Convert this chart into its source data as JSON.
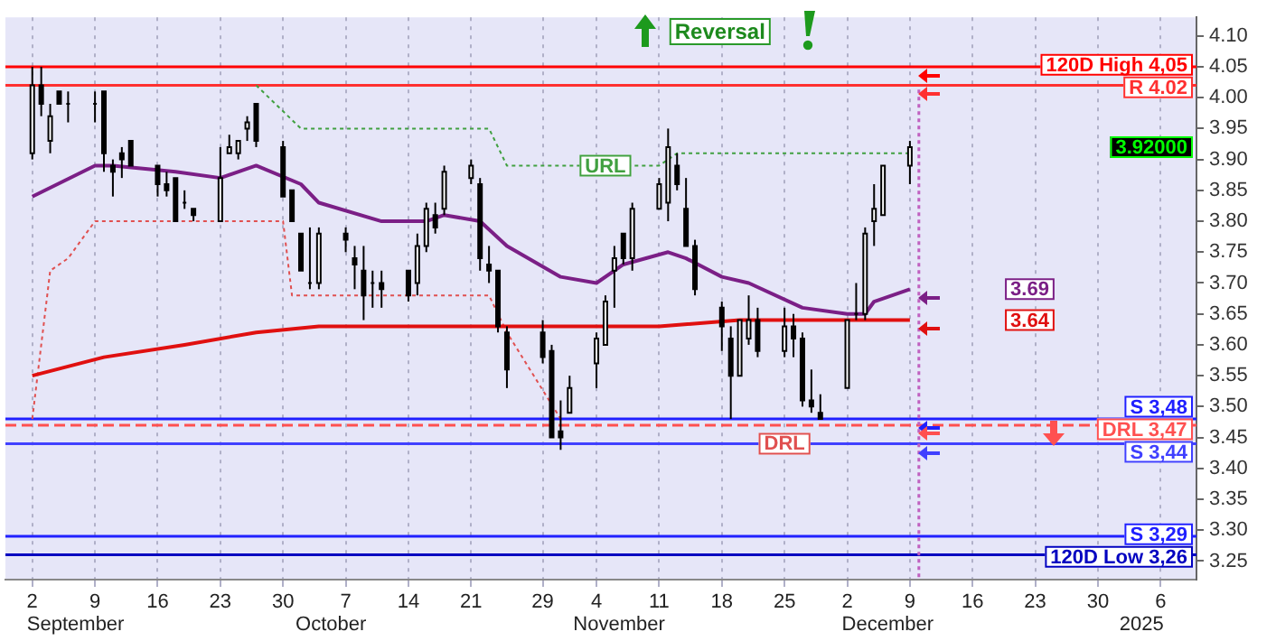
{
  "chart_data": {
    "type": "candlestick",
    "title": "Reversal",
    "x": [
      "2024-09-02",
      "2024-09-03",
      "2024-09-04",
      "2024-09-05",
      "2024-09-06",
      "2024-09-09",
      "2024-09-10",
      "2024-09-11",
      "2024-09-12",
      "2024-09-13",
      "2024-09-16",
      "2024-09-17",
      "2024-09-18",
      "2024-09-19",
      "2024-09-20",
      "2024-09-23",
      "2024-09-24",
      "2024-09-25",
      "2024-09-26",
      "2024-09-27",
      "2024-09-30",
      "2024-10-01",
      "2024-10-02",
      "2024-10-03",
      "2024-10-04",
      "2024-10-07",
      "2024-10-08",
      "2024-10-09",
      "2024-10-10",
      "2024-10-11",
      "2024-10-14",
      "2024-10-15",
      "2024-10-16",
      "2024-10-17",
      "2024-10-18",
      "2024-10-21",
      "2024-10-22",
      "2024-10-23",
      "2024-10-24",
      "2024-10-25",
      "2024-10-29",
      "2024-10-30",
      "2024-10-31",
      "2024-11-01",
      "2024-11-04",
      "2024-11-05",
      "2024-11-06",
      "2024-11-07",
      "2024-11-08",
      "2024-11-11",
      "2024-11-12",
      "2024-11-13",
      "2024-11-14",
      "2024-11-15",
      "2024-11-18",
      "2024-11-19",
      "2024-11-20",
      "2024-11-21",
      "2024-11-22",
      "2024-11-25",
      "2024-11-26",
      "2024-11-27",
      "2024-11-28",
      "2024-11-29",
      "2024-12-02",
      "2024-12-03",
      "2024-12-04",
      "2024-12-05",
      "2024-12-06",
      "2024-12-09"
    ],
    "ohlc": [
      [
        3.91,
        4.05,
        3.9,
        4.02
      ],
      [
        4.02,
        4.05,
        3.97,
        3.99
      ],
      [
        3.93,
        3.99,
        3.91,
        3.97
      ],
      [
        4.01,
        4.01,
        3.99,
        3.99
      ],
      [
        3.99,
        4.01,
        3.96,
        3.99
      ],
      [
        3.99,
        4.01,
        3.96,
        3.99
      ],
      [
        4.01,
        4.01,
        3.88,
        3.91
      ],
      [
        3.89,
        3.9,
        3.84,
        3.88
      ],
      [
        3.91,
        3.92,
        3.87,
        3.9
      ],
      [
        3.93,
        3.93,
        3.89,
        3.89
      ],
      [
        3.89,
        3.89,
        3.84,
        3.86
      ],
      [
        3.86,
        3.88,
        3.84,
        3.85
      ],
      [
        3.87,
        3.87,
        3.8,
        3.8
      ],
      [
        3.83,
        3.85,
        3.82,
        3.83
      ],
      [
        3.82,
        3.82,
        3.8,
        3.81
      ],
      [
        3.8,
        3.92,
        3.8,
        3.87
      ],
      [
        3.91,
        3.94,
        3.91,
        3.92
      ],
      [
        3.91,
        3.93,
        3.9,
        3.93
      ],
      [
        3.95,
        3.97,
        3.93,
        3.96
      ],
      [
        3.99,
        3.99,
        3.92,
        3.93
      ],
      [
        3.92,
        3.93,
        3.84,
        3.84
      ],
      [
        3.85,
        3.85,
        3.8,
        3.8
      ],
      [
        3.78,
        3.78,
        3.72,
        3.72
      ],
      [
        3.7,
        3.79,
        3.69,
        3.7
      ],
      [
        3.7,
        3.79,
        3.69,
        3.78
      ],
      [
        3.78,
        3.79,
        3.75,
        3.77
      ],
      [
        3.74,
        3.76,
        3.69,
        3.73
      ],
      [
        3.72,
        3.76,
        3.64,
        3.68
      ],
      [
        3.7,
        3.72,
        3.66,
        3.7
      ],
      [
        3.7,
        3.72,
        3.66,
        3.69
      ],
      [
        3.72,
        3.72,
        3.67,
        3.68
      ],
      [
        3.7,
        3.78,
        3.68,
        3.76
      ],
      [
        3.76,
        3.83,
        3.75,
        3.82
      ],
      [
        3.81,
        3.83,
        3.78,
        3.79
      ],
      [
        3.82,
        3.89,
        3.81,
        3.88
      ],
      [
        3.87,
        3.9,
        3.86,
        3.89
      ],
      [
        3.86,
        3.87,
        3.72,
        3.74
      ],
      [
        3.73,
        3.76,
        3.7,
        3.72
      ],
      [
        3.72,
        3.72,
        3.62,
        3.63
      ],
      [
        3.62,
        3.63,
        3.53,
        3.56
      ],
      [
        3.62,
        3.64,
        3.57,
        3.58
      ],
      [
        3.59,
        3.6,
        3.45,
        3.45
      ],
      [
        3.46,
        3.51,
        3.43,
        3.45
      ],
      [
        3.49,
        3.55,
        3.49,
        3.53
      ],
      [
        3.57,
        3.62,
        3.53,
        3.61
      ],
      [
        3.6,
        3.68,
        3.6,
        3.67
      ],
      [
        3.72,
        3.76,
        3.66,
        3.74
      ],
      [
        3.78,
        3.78,
        3.73,
        3.74
      ],
      [
        3.74,
        3.83,
        3.72,
        3.82
      ],
      [
        3.82,
        3.87,
        3.82,
        3.86
      ],
      [
        3.83,
        3.95,
        3.8,
        3.92
      ],
      [
        3.89,
        3.91,
        3.85,
        3.86
      ],
      [
        3.82,
        3.87,
        3.76,
        3.76
      ],
      [
        3.76,
        3.77,
        3.68,
        3.69
      ],
      [
        3.66,
        3.67,
        3.59,
        3.63
      ],
      [
        3.61,
        3.63,
        3.48,
        3.55
      ],
      [
        3.55,
        3.64,
        3.55,
        3.64
      ],
      [
        3.61,
        3.68,
        3.6,
        3.64
      ],
      [
        3.64,
        3.66,
        3.58,
        3.59
      ],
      [
        3.59,
        3.66,
        3.58,
        3.63
      ],
      [
        3.63,
        3.65,
        3.58,
        3.61
      ],
      [
        3.61,
        3.62,
        3.5,
        3.51
      ],
      [
        3.51,
        3.56,
        3.49,
        3.5
      ],
      [
        3.49,
        3.52,
        3.48,
        3.48
      ],
      [
        3.53,
        3.64,
        3.53,
        3.64
      ],
      [
        3.65,
        3.7,
        3.64,
        3.65
      ],
      [
        3.65,
        3.79,
        3.64,
        3.78
      ],
      [
        3.8,
        3.86,
        3.76,
        3.82
      ],
      [
        3.81,
        3.89,
        3.81,
        3.89
      ],
      [
        3.89,
        3.93,
        3.86,
        3.92
      ]
    ],
    "series": [
      {
        "type": "line",
        "color": "#7b1f86",
        "x": [
          "2024-09-02",
          "2024-09-09",
          "2024-09-11",
          "2024-09-18",
          "2024-09-23",
          "2024-09-27",
          "2024-10-02",
          "2024-10-04",
          "2024-10-11",
          "2024-10-16",
          "2024-10-18",
          "2024-10-22",
          "2024-10-25",
          "2024-10-31",
          "2024-11-04",
          "2024-11-07",
          "2024-11-12",
          "2024-11-14",
          "2024-11-18",
          "2024-11-21",
          "2024-11-27",
          "2024-12-02",
          "2024-12-04",
          "2024-12-05",
          "2024-12-09"
        ],
        "values": [
          3.84,
          3.89,
          3.89,
          3.88,
          3.87,
          3.89,
          3.86,
          3.83,
          3.8,
          3.8,
          3.81,
          3.8,
          3.76,
          3.71,
          3.7,
          3.73,
          3.75,
          3.74,
          3.71,
          3.7,
          3.66,
          3.65,
          3.65,
          3.67,
          3.69
        ]
      },
      {
        "type": "line",
        "color": "#e01010",
        "x": [
          "2024-09-02",
          "2024-09-10",
          "2024-09-19",
          "2024-09-27",
          "2024-10-04",
          "2024-10-16",
          "2024-10-31",
          "2024-11-11",
          "2024-11-20",
          "2024-11-29",
          "2024-12-09"
        ],
        "values": [
          3.55,
          3.58,
          3.6,
          3.62,
          3.63,
          3.63,
          3.63,
          3.63,
          3.64,
          3.64,
          3.64
        ]
      },
      {
        "type": "line",
        "line_style": "dotted",
        "color": "#e05050",
        "x": [
          "2024-09-02",
          "2024-09-04",
          "2024-09-06",
          "2024-09-09",
          "2024-09-30",
          "2024-10-01",
          "2024-10-23",
          "2024-10-25",
          "2024-10-31"
        ],
        "values": [
          3.48,
          3.72,
          3.74,
          3.8,
          3.8,
          3.68,
          3.68,
          3.62,
          3.48
        ]
      },
      {
        "type": "line",
        "line_style": "dotted",
        "color": "#40a040",
        "x": [
          "2024-09-27",
          "2024-10-02",
          "2024-10-23",
          "2024-10-25",
          "2024-11-11",
          "2024-11-13",
          "2024-12-09"
        ],
        "values": [
          4.02,
          3.95,
          3.95,
          3.89,
          3.89,
          3.91,
          3.91
        ]
      }
    ],
    "xlim": [
      "2024-08-30",
      "2025-01-10"
    ],
    "xticks": [
      {
        "value": "2024-09-02",
        "label": "2"
      },
      {
        "value": "2024-09-09",
        "label": "9"
      },
      {
        "value": "2024-09-16",
        "label": "16"
      },
      {
        "value": "2024-09-23",
        "label": "23"
      },
      {
        "value": "2024-09-30",
        "label": "30"
      },
      {
        "value": "2024-10-07",
        "label": "7"
      },
      {
        "value": "2024-10-14",
        "label": "14"
      },
      {
        "value": "2024-10-21",
        "label": "21"
      },
      {
        "value": "2024-10-29",
        "label": "29"
      },
      {
        "value": "2024-11-04",
        "label": "4"
      },
      {
        "value": "2024-11-11",
        "label": "11"
      },
      {
        "value": "2024-11-18",
        "label": "18"
      },
      {
        "value": "2024-11-25",
        "label": "25"
      },
      {
        "value": "2024-12-02",
        "label": "2"
      },
      {
        "value": "2024-12-09",
        "label": "9"
      },
      {
        "value": "2024-12-16",
        "label": "16"
      },
      {
        "value": "2024-12-23",
        "label": "23"
      },
      {
        "value": "2024-12-30",
        "label": "30"
      },
      {
        "value": "2025-01-06",
        "label": "6"
      }
    ],
    "ylim": [
      3.22,
      4.13
    ],
    "yticks": [
      {
        "value": 3.25,
        "label": "3.25"
      },
      {
        "value": 3.3,
        "label": "3.30"
      },
      {
        "value": 3.35,
        "label": "3.35"
      },
      {
        "value": 3.4,
        "label": "3.40"
      },
      {
        "value": 3.45,
        "label": "3.45"
      },
      {
        "value": 3.5,
        "label": "3.50"
      },
      {
        "value": 3.55,
        "label": "3.55"
      },
      {
        "value": 3.6,
        "label": "3.60"
      },
      {
        "value": 3.65,
        "label": "3.65"
      },
      {
        "value": 3.7,
        "label": "3.70"
      },
      {
        "value": 3.75,
        "label": "3.75"
      },
      {
        "value": 3.8,
        "label": "3.80"
      },
      {
        "value": 3.85,
        "label": "3.85"
      },
      {
        "value": 3.9,
        "label": "3.90"
      },
      {
        "value": 3.95,
        "label": "3.95"
      },
      {
        "value": 4.0,
        "label": "4.00"
      },
      {
        "value": 4.05,
        "label": "4.05"
      },
      {
        "value": 4.1,
        "label": "4.10"
      }
    ],
    "ref_lines": [
      {
        "axis": "y",
        "value": 4.05,
        "label": "120D High 4,05",
        "color": "#ff0000"
      },
      {
        "axis": "y",
        "value": 4.02,
        "label": "R 4.02",
        "color": "#ff3030"
      },
      {
        "axis": "y",
        "value": 3.48,
        "label": "S 3,48",
        "color": "#2020ff"
      },
      {
        "axis": "y",
        "value": 3.47,
        "label": "DRL 3,47",
        "color": "#ff5050",
        "line_style": "dashed"
      },
      {
        "axis": "y",
        "value": 3.44,
        "label": "S 3,44",
        "color": "#4040ff"
      },
      {
        "axis": "y",
        "value": 3.29,
        "label": "S 3,29",
        "color": "#2020ff"
      },
      {
        "axis": "y",
        "value": 3.26,
        "label": "120D Low 3,26",
        "color": "#0000c0"
      },
      {
        "axis": "x",
        "value": "2024-12-10",
        "color": "#c060c0",
        "line_style": "dotted"
      }
    ],
    "annotations": [
      {
        "text": "URL",
        "x": "2024-11-05",
        "y": 3.89
      },
      {
        "text": "DRL",
        "x": "2024-11-25",
        "y": 3.44
      },
      {
        "text": "3.69",
        "y": 3.69
      },
      {
        "text": "3.64",
        "y": 3.64
      },
      "September",
      "October",
      "November",
      "December",
      "2025",
      "3.92000"
    ],
    "grid": "x",
    "legend": false
  }
}
